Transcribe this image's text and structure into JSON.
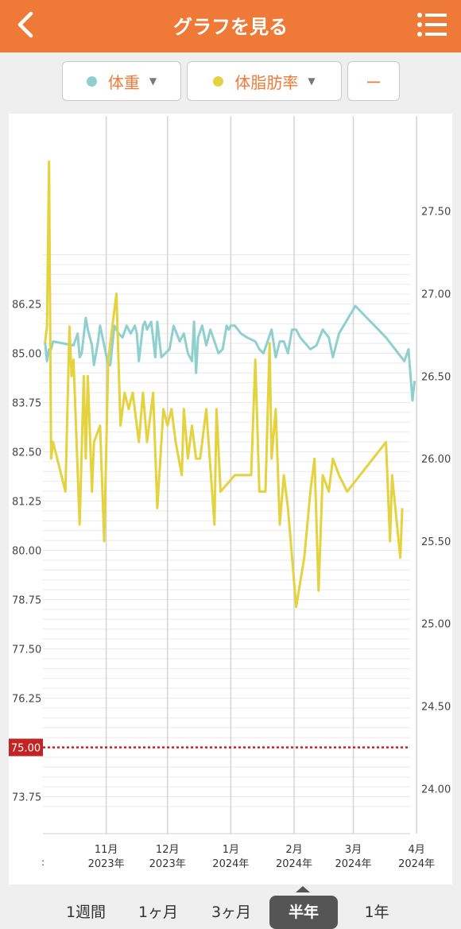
{
  "header": {
    "title": "グラフを見る",
    "back_icon": "chevron-left-icon",
    "menu_icon": "list-menu-icon"
  },
  "selectors": [
    {
      "label": "体重",
      "color": "#8fd0cf",
      "has_dropdown": true
    },
    {
      "label": "体脂肪率",
      "color": "#e4d23e",
      "has_dropdown": true
    },
    {
      "label": "ー"
    }
  ],
  "tabs": [
    "1週間",
    "1ヶ月",
    "3ヶ月",
    "半年",
    "1年"
  ],
  "active_tab": "半年",
  "chart_data": {
    "type": "line",
    "x_ticks": [
      {
        "month": "11月",
        "year": "2023年"
      },
      {
        "month": "12月",
        "year": "2023年"
      },
      {
        "month": "1月",
        "year": "2024年"
      },
      {
        "month": "2月",
        "year": "2024年"
      },
      {
        "month": "3月",
        "year": "2024年"
      },
      {
        "month": "4月",
        "year": "2024年"
      }
    ],
    "x_first_tick_fragment": ":",
    "left_axis": {
      "ylim": [
        73.0,
        87.5
      ],
      "ticks": [
        "86.25",
        "85.00",
        "83.75",
        "82.50",
        "81.25",
        "80.00",
        "78.75",
        "77.50",
        "76.25",
        "75.00",
        "73.75"
      ]
    },
    "right_axis": {
      "ylim": [
        23.7,
        27.9
      ],
      "ticks": [
        "27.50",
        "27.00",
        "26.50",
        "26.00",
        "25.50",
        "25.00",
        "24.50",
        "24.00"
      ]
    },
    "target_line": {
      "value": 75.0,
      "label": "75.00",
      "color": "#cc1f1f"
    },
    "series": [
      {
        "name": "体重",
        "axis": "left",
        "color": "#8fd0cf",
        "points": [
          [
            "2023-10-02",
            85.3
          ],
          [
            "2023-10-03",
            84.8
          ],
          [
            "2023-10-04",
            85.1
          ],
          [
            "2023-10-05",
            85.1
          ],
          [
            "2023-10-06",
            85.3
          ],
          [
            "2023-10-16",
            85.2
          ],
          [
            "2023-10-18",
            85.5
          ],
          [
            "2023-10-19",
            84.9
          ],
          [
            "2023-10-20",
            85.0
          ],
          [
            "2023-10-22",
            85.9
          ],
          [
            "2023-10-23",
            85.6
          ],
          [
            "2023-10-25",
            85.2
          ],
          [
            "2023-10-26",
            84.7
          ],
          [
            "2023-10-28",
            85.3
          ],
          [
            "2023-10-29",
            85.7
          ],
          [
            "2023-10-31",
            85.2
          ],
          [
            "2023-11-02",
            84.7
          ],
          [
            "2023-11-03",
            84.7
          ],
          [
            "2023-11-05",
            85.7
          ],
          [
            "2023-11-07",
            85.5
          ],
          [
            "2023-11-09",
            85.4
          ],
          [
            "2023-11-11",
            85.7
          ],
          [
            "2023-11-13",
            85.5
          ],
          [
            "2023-11-15",
            85.7
          ],
          [
            "2023-11-16",
            85.5
          ],
          [
            "2023-11-17",
            84.8
          ],
          [
            "2023-11-19",
            85.7
          ],
          [
            "2023-11-20",
            85.8
          ],
          [
            "2023-11-21",
            85.6
          ],
          [
            "2023-11-23",
            85.8
          ],
          [
            "2023-11-25",
            84.9
          ],
          [
            "2023-11-26",
            85.8
          ],
          [
            "2023-11-28",
            84.9
          ],
          [
            "2023-11-30",
            85.0
          ],
          [
            "2023-12-02",
            85.1
          ],
          [
            "2023-12-04",
            85.7
          ],
          [
            "2023-12-07",
            85.3
          ],
          [
            "2023-12-09",
            85.5
          ],
          [
            "2023-12-11",
            85.0
          ],
          [
            "2023-12-13",
            84.8
          ],
          [
            "2023-12-14",
            85.8
          ],
          [
            "2023-12-15",
            84.5
          ],
          [
            "2023-12-16",
            85.4
          ],
          [
            "2023-12-18",
            85.7
          ],
          [
            "2023-12-20",
            85.2
          ],
          [
            "2023-12-22",
            85.6
          ],
          [
            "2023-12-24",
            85.3
          ],
          [
            "2023-12-26",
            85.0
          ],
          [
            "2023-12-28",
            85.1
          ],
          [
            "2023-12-30",
            85.7
          ],
          [
            "2023-12-31",
            85.6
          ],
          [
            "2024-01-01",
            85.7
          ],
          [
            "2024-01-03",
            85.7
          ],
          [
            "2024-01-06",
            85.5
          ],
          [
            "2024-01-09",
            85.4
          ],
          [
            "2024-01-13",
            85.3
          ],
          [
            "2024-01-15",
            85.1
          ],
          [
            "2024-01-17",
            85.0
          ],
          [
            "2024-01-19",
            85.3
          ],
          [
            "2024-01-21",
            85.6
          ],
          [
            "2024-01-23",
            84.9
          ],
          [
            "2024-01-25",
            85.3
          ],
          [
            "2024-01-27",
            85.3
          ],
          [
            "2024-01-29",
            85.0
          ],
          [
            "2024-01-31",
            85.6
          ],
          [
            "2024-02-02",
            85.6
          ],
          [
            "2024-02-04",
            85.4
          ],
          [
            "2024-02-09",
            85.1
          ],
          [
            "2024-02-12",
            85.2
          ],
          [
            "2024-02-15",
            85.6
          ],
          [
            "2024-02-18",
            85.4
          ],
          [
            "2024-02-20",
            84.9
          ],
          [
            "2024-02-23",
            85.5
          ],
          [
            "2024-03-02",
            86.2
          ],
          [
            "2024-03-17",
            85.4
          ],
          [
            "2024-03-26",
            84.8
          ],
          [
            "2024-03-28",
            85.1
          ],
          [
            "2024-03-30",
            83.8
          ],
          [
            "2024-03-31",
            84.3
          ]
        ]
      },
      {
        "name": "体脂肪率",
        "axis": "right",
        "color": "#e4d23e",
        "points": [
          [
            "2023-10-02",
            26.7
          ],
          [
            "2023-10-03",
            26.8
          ],
          [
            "2023-10-04",
            27.8
          ],
          [
            "2023-10-05",
            26.0
          ],
          [
            "2023-10-06",
            26.1
          ],
          [
            "2023-10-12",
            25.8
          ],
          [
            "2023-10-14",
            26.8
          ],
          [
            "2023-10-15",
            26.5
          ],
          [
            "2023-10-16",
            26.6
          ],
          [
            "2023-10-19",
            25.6
          ],
          [
            "2023-10-21",
            26.5
          ],
          [
            "2023-10-22",
            26.0
          ],
          [
            "2023-10-23",
            26.5
          ],
          [
            "2023-10-25",
            25.8
          ],
          [
            "2023-10-26",
            26.1
          ],
          [
            "2023-10-29",
            26.2
          ],
          [
            "2023-10-31",
            25.5
          ],
          [
            "2023-11-02",
            26.6
          ],
          [
            "2023-11-06",
            27.0
          ],
          [
            "2023-11-08",
            26.2
          ],
          [
            "2023-11-10",
            26.4
          ],
          [
            "2023-11-12",
            26.3
          ],
          [
            "2023-11-14",
            26.4
          ],
          [
            "2023-11-17",
            26.1
          ],
          [
            "2023-11-19",
            26.4
          ],
          [
            "2023-11-21",
            26.1
          ],
          [
            "2023-11-24",
            26.4
          ],
          [
            "2023-11-26",
            25.7
          ],
          [
            "2023-11-29",
            26.3
          ],
          [
            "2023-12-01",
            26.2
          ],
          [
            "2023-12-03",
            26.3
          ],
          [
            "2023-12-05",
            26.1
          ],
          [
            "2023-12-08",
            25.9
          ],
          [
            "2023-12-09",
            26.3
          ],
          [
            "2023-12-11",
            26.0
          ],
          [
            "2023-12-13",
            26.2
          ],
          [
            "2023-12-15",
            26.0
          ],
          [
            "2023-12-17",
            26.0
          ],
          [
            "2023-12-20",
            26.3
          ],
          [
            "2023-12-24",
            25.6
          ],
          [
            "2023-12-25",
            26.3
          ],
          [
            "2023-12-27",
            25.8
          ],
          [
            "2024-01-03",
            25.9
          ],
          [
            "2024-01-07",
            25.9
          ],
          [
            "2024-01-11",
            25.9
          ],
          [
            "2024-01-13",
            26.6
          ],
          [
            "2024-01-15",
            25.8
          ],
          [
            "2024-01-18",
            25.8
          ],
          [
            "2024-01-20",
            26.7
          ],
          [
            "2024-01-21",
            26.0
          ],
          [
            "2024-01-23",
            26.3
          ],
          [
            "2024-01-25",
            25.6
          ],
          [
            "2024-01-27",
            25.9
          ],
          [
            "2024-01-29",
            25.7
          ],
          [
            "2024-02-02",
            25.1
          ],
          [
            "2024-02-06",
            25.4
          ],
          [
            "2024-02-09",
            25.8
          ],
          [
            "2024-02-11",
            26.0
          ],
          [
            "2024-02-13",
            25.2
          ],
          [
            "2024-02-15",
            25.9
          ],
          [
            "2024-02-18",
            25.8
          ],
          [
            "2024-02-20",
            26.0
          ],
          [
            "2024-02-23",
            25.9
          ],
          [
            "2024-02-27",
            25.8
          ],
          [
            "2024-03-17",
            26.1
          ],
          [
            "2024-03-19",
            25.5
          ],
          [
            "2024-03-20",
            25.9
          ],
          [
            "2024-03-24",
            25.4
          ],
          [
            "2024-03-25",
            25.7
          ]
        ]
      }
    ],
    "grid": true,
    "legend": "none"
  }
}
